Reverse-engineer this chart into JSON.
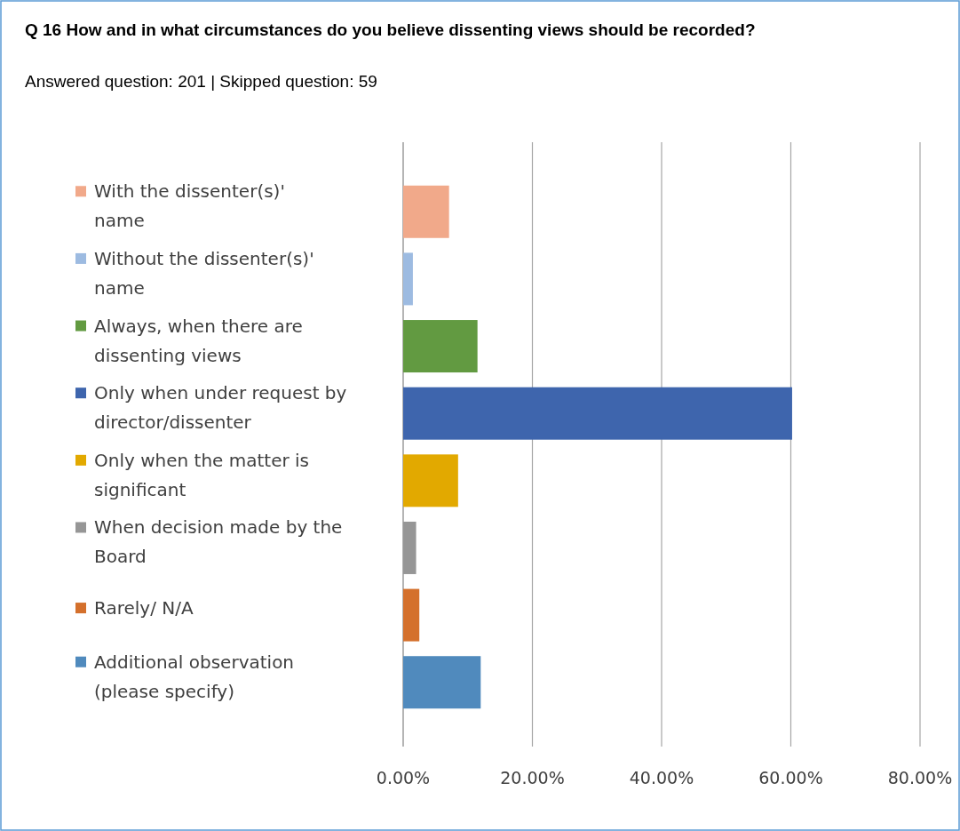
{
  "chart_data": {
    "type": "bar",
    "orientation": "horizontal",
    "title": "Q 16 How and in what circumstances do you believe dissenting views should be recorded?",
    "subtitle": "Answered question: 201 | Skipped question: 59",
    "categories": [
      null
    ],
    "series": [
      {
        "name": "With the dissenter(s)' name",
        "color": "#f1a98a",
        "values": [
          7.1
        ]
      },
      {
        "name": "Without the dissenter(s)' name",
        "color": "#9dbbe1",
        "values": [
          1.5
        ]
      },
      {
        "name": "Always, when there are dissenting views",
        "color": "#629a41",
        "values": [
          11.5
        ]
      },
      {
        "name": "Only when under request by director/dissenter",
        "color": "#3e65ad",
        "values": [
          60.2
        ]
      },
      {
        "name": "Only when the matter is significant",
        "color": "#e2a900",
        "values": [
          8.5
        ]
      },
      {
        "name": "When decision made by the Board",
        "color": "#969696",
        "values": [
          2.0
        ]
      },
      {
        "name": "Rarely/ N/A",
        "color": "#d4702c",
        "values": [
          2.5
        ]
      },
      {
        "name": "Additional observation (please specify)",
        "color": "#508abd",
        "values": [
          12.0
        ]
      }
    ],
    "xlim": [
      0,
      80
    ],
    "xticks": [
      {
        "value": 0,
        "label": "0.00%"
      },
      {
        "value": 20,
        "label": "20.00%"
      },
      {
        "value": 40,
        "label": "40.00%"
      },
      {
        "value": 60,
        "label": "60.00%"
      },
      {
        "value": 80,
        "label": "80.00%"
      }
    ],
    "grid": "x",
    "legend": "left"
  }
}
